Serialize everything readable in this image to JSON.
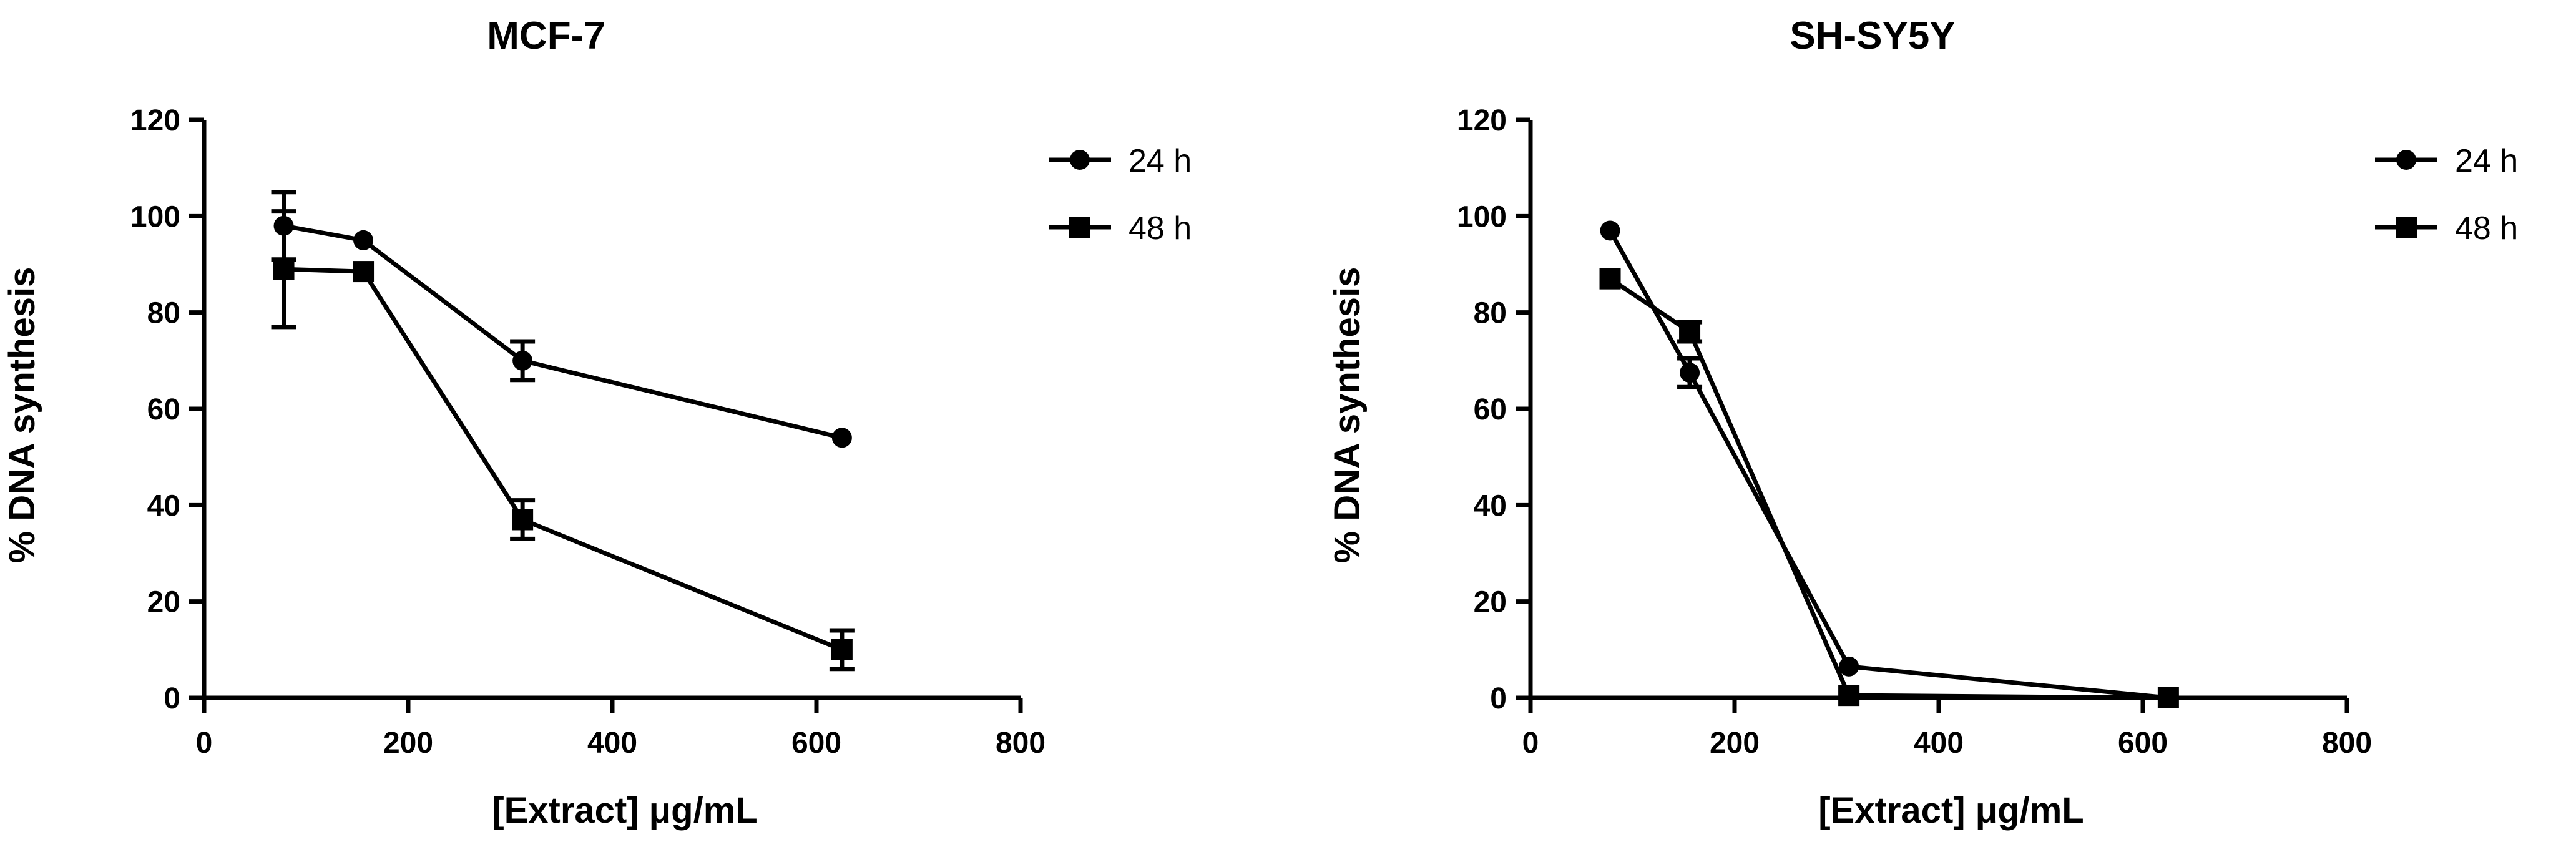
{
  "chart_data": [
    {
      "type": "line",
      "title": "MCF-7",
      "xlabel": "[Extract] μg/mL",
      "ylabel": "% DNA synthesis",
      "xlim": [
        0,
        800
      ],
      "ylim": [
        0,
        120
      ],
      "xticks": [
        0,
        200,
        400,
        600,
        800
      ],
      "yticks": [
        0,
        20,
        40,
        60,
        80,
        100,
        120
      ],
      "grid": false,
      "legend_position": "top-right",
      "series": [
        {
          "name": "24 h",
          "marker": "circle",
          "points": [
            {
              "x": 78,
              "y": 98,
              "err": 7
            },
            {
              "x": 156,
              "y": 95,
              "err": 0
            },
            {
              "x": 312,
              "y": 70,
              "err": 4
            },
            {
              "x": 625,
              "y": 54,
              "err": 0
            }
          ]
        },
        {
          "name": "48 h",
          "marker": "square",
          "points": [
            {
              "x": 78,
              "y": 89,
              "err": 12
            },
            {
              "x": 156,
              "y": 88.5,
              "err": 0
            },
            {
              "x": 312,
              "y": 37,
              "err": 4
            },
            {
              "x": 625,
              "y": 10,
              "err": 4
            }
          ]
        }
      ]
    },
    {
      "type": "line",
      "title": "SH-SY5Y",
      "xlabel": "[Extract] μg/mL",
      "ylabel": "% DNA synthesis",
      "xlim": [
        0,
        800
      ],
      "ylim": [
        0,
        120
      ],
      "xticks": [
        0,
        200,
        400,
        600,
        800
      ],
      "yticks": [
        0,
        20,
        40,
        60,
        80,
        100,
        120
      ],
      "grid": false,
      "legend_position": "top-right",
      "series": [
        {
          "name": "24 h",
          "marker": "circle",
          "points": [
            {
              "x": 78,
              "y": 97,
              "err": 0
            },
            {
              "x": 156,
              "y": 67.5,
              "err": 3
            },
            {
              "x": 312,
              "y": 6.5,
              "err": 0
            },
            {
              "x": 625,
              "y": 0,
              "err": 0
            }
          ]
        },
        {
          "name": "48 h",
          "marker": "square",
          "points": [
            {
              "x": 78,
              "y": 87,
              "err": 0
            },
            {
              "x": 156,
              "y": 76,
              "err": 2
            },
            {
              "x": 312,
              "y": 0.5,
              "err": 0
            },
            {
              "x": 625,
              "y": 0,
              "err": 0
            }
          ]
        }
      ]
    }
  ]
}
